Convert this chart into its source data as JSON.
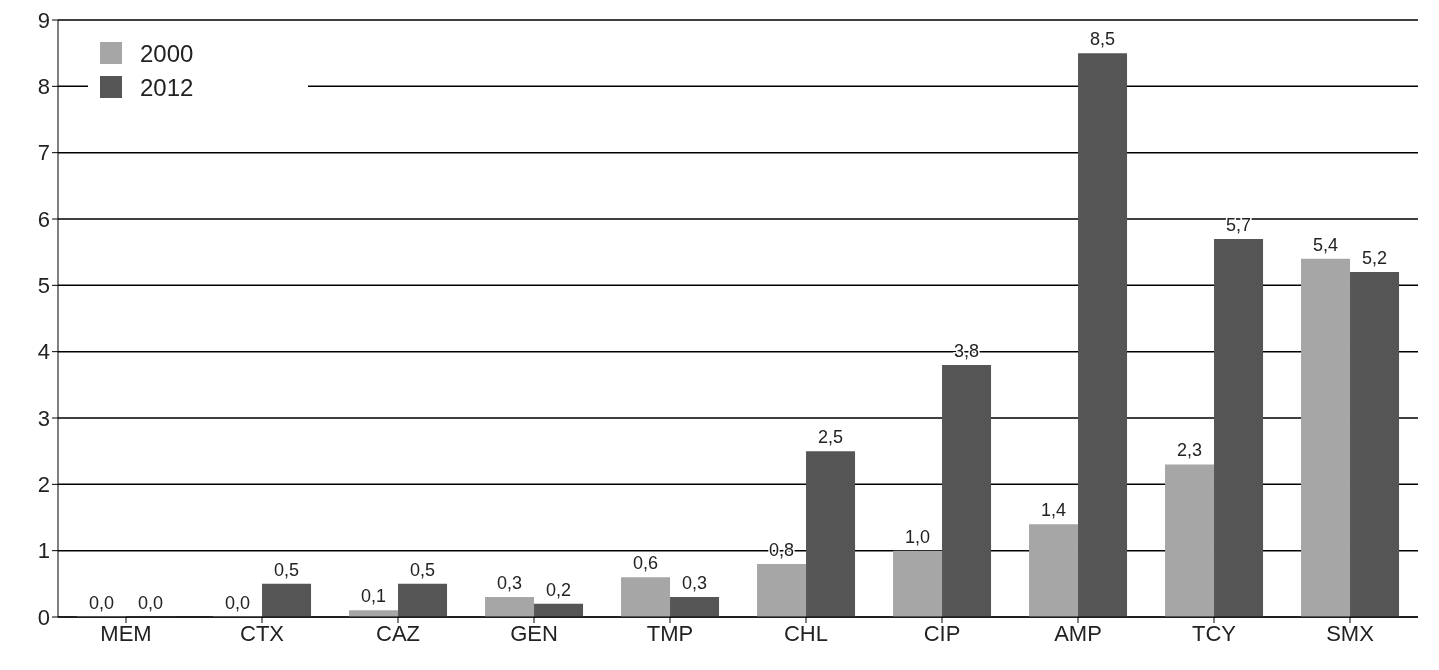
{
  "chart_data": {
    "type": "bar",
    "categories": [
      "MEM",
      "CTX",
      "CAZ",
      "GEN",
      "TMP",
      "CHL",
      "CIP",
      "AMP",
      "TCY",
      "SMX"
    ],
    "series": [
      {
        "name": "2000",
        "color": "#a6a6a6",
        "values": [
          0.0,
          0.0,
          0.1,
          0.3,
          0.6,
          0.8,
          1.0,
          1.4,
          2.3,
          5.4
        ],
        "value_labels": [
          "0,0",
          "0,0",
          "0,1",
          "0,3",
          "0,6",
          "0,8",
          "1,0",
          "1,4",
          "2,3",
          "5,4"
        ]
      },
      {
        "name": "2012",
        "color": "#555555",
        "values": [
          0.0,
          0.5,
          0.5,
          0.2,
          0.3,
          2.5,
          3.8,
          8.5,
          5.7,
          5.2
        ],
        "value_labels": [
          "0,0",
          "0,5",
          "0,5",
          "0,2",
          "0,3",
          "2,5",
          "3,8",
          "8,5",
          "5,7",
          "5,2"
        ]
      }
    ],
    "ylim": [
      0,
      9
    ],
    "yticks": [
      0,
      1,
      2,
      3,
      4,
      5,
      6,
      7,
      8,
      9
    ],
    "grid": "y",
    "legend": "top left"
  }
}
